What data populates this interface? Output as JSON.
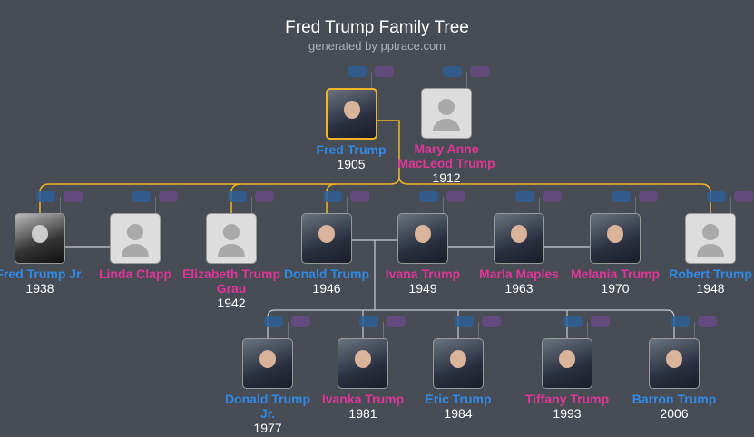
{
  "header": {
    "title": "Fred Trump Family Tree",
    "subtitle": "generated by pptrace.com"
  },
  "colors": {
    "male": "#2f8ae8",
    "female": "#e0369a",
    "ancestry_line": "#f0b429",
    "background": "#484c54"
  },
  "gen1": [
    {
      "name": "Fred Trump",
      "year": "1905",
      "sex": "m",
      "photo": "real",
      "selected": true
    },
    {
      "name": "Mary Anne MacLeod Trump",
      "year": "1912",
      "sex": "f",
      "photo": "placeholder"
    }
  ],
  "gen2": [
    {
      "name": "Fred Trump Jr.",
      "year": "1938",
      "sex": "m",
      "photo": "bw"
    },
    {
      "name": "Linda Clapp",
      "year": "",
      "sex": "f",
      "photo": "placeholder"
    },
    {
      "name": "Elizabeth Trump Grau",
      "year": "1942",
      "sex": "f",
      "photo": "placeholder"
    },
    {
      "name": "Donald Trump",
      "year": "1946",
      "sex": "m",
      "photo": "real"
    },
    {
      "name": "Ivana Trump",
      "year": "1949",
      "sex": "f",
      "photo": "real"
    },
    {
      "name": "Marla Maples",
      "year": "1963",
      "sex": "f",
      "photo": "real"
    },
    {
      "name": "Melania Trump",
      "year": "1970",
      "sex": "f",
      "photo": "real"
    },
    {
      "name": "Robert Trump",
      "year": "1948",
      "sex": "m",
      "photo": "placeholder"
    }
  ],
  "gen3": [
    {
      "name": "Donald Trump Jr.",
      "year": "1977",
      "sex": "m",
      "photo": "real"
    },
    {
      "name": "Ivanka Trump",
      "year": "1981",
      "sex": "f",
      "photo": "real"
    },
    {
      "name": "Eric Trump",
      "year": "1984",
      "sex": "m",
      "photo": "real"
    },
    {
      "name": "Tiffany Trump",
      "year": "1993",
      "sex": "f",
      "photo": "real"
    },
    {
      "name": "Barron Trump",
      "year": "2006",
      "sex": "m",
      "photo": "real"
    }
  ]
}
